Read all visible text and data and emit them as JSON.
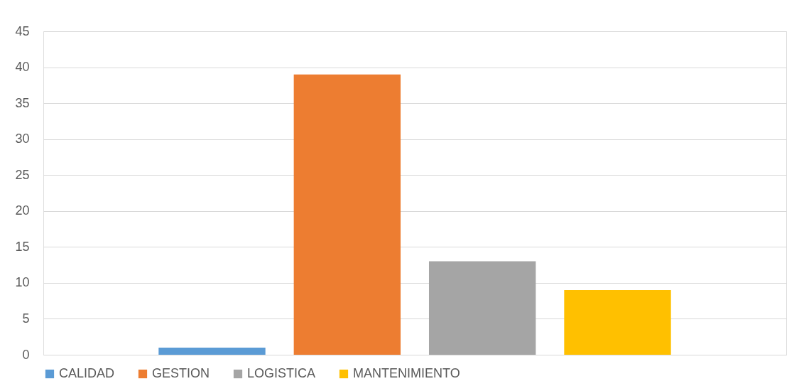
{
  "chart_data": {
    "type": "bar",
    "categories": [
      null
    ],
    "series": [
      {
        "name": "CALIDAD",
        "color": "#5b9bd5",
        "values": [
          1
        ]
      },
      {
        "name": "GESTION",
        "color": "#ed7d31",
        "values": [
          39
        ]
      },
      {
        "name": "LOGISTICA",
        "color": "#a5a5a5",
        "values": [
          13
        ]
      },
      {
        "name": "MANTENIMIENTO",
        "color": "#ffc000",
        "values": [
          9
        ]
      }
    ],
    "ylim": [
      0,
      45
    ],
    "yticks": [
      0,
      5,
      10,
      15,
      20,
      25,
      30,
      35,
      40,
      45
    ],
    "grid": "y",
    "legend": "bottom",
    "tick_labels": "y"
  }
}
